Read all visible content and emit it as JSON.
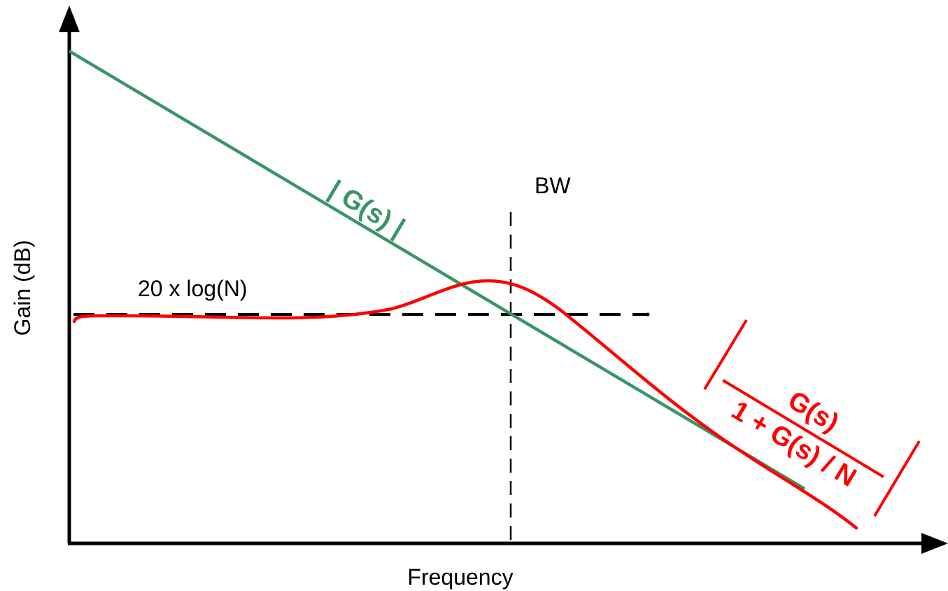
{
  "diagram": {
    "x_axis_label": "Frequency",
    "y_axis_label": "Gain (dB)",
    "reference_label": "20 x log(N)",
    "bandwidth_label": "BW",
    "open_loop_label": "| G(s) |",
    "closed_loop_numerator": "G(s)",
    "closed_loop_denominator": "1 + G(s) / N",
    "colors": {
      "open_loop": "#3a9467",
      "closed_loop": "#ff0000",
      "axes": "#000000"
    }
  }
}
